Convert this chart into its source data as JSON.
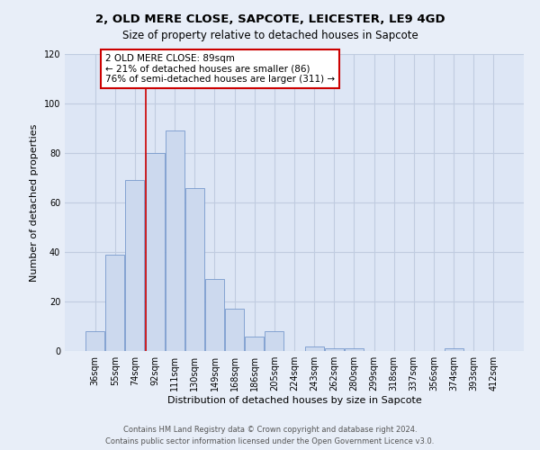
{
  "title": "2, OLD MERE CLOSE, SAPCOTE, LEICESTER, LE9 4GD",
  "subtitle": "Size of property relative to detached houses in Sapcote",
  "xlabel": "Distribution of detached houses by size in Sapcote",
  "ylabel": "Number of detached properties",
  "bar_labels": [
    "36sqm",
    "55sqm",
    "74sqm",
    "92sqm",
    "111sqm",
    "130sqm",
    "149sqm",
    "168sqm",
    "186sqm",
    "205sqm",
    "224sqm",
    "243sqm",
    "262sqm",
    "280sqm",
    "299sqm",
    "318sqm",
    "337sqm",
    "356sqm",
    "374sqm",
    "393sqm",
    "412sqm"
  ],
  "bar_values": [
    8,
    39,
    69,
    80,
    89,
    66,
    29,
    17,
    6,
    8,
    0,
    2,
    1,
    1,
    0,
    0,
    0,
    0,
    1,
    0,
    0
  ],
  "bar_color": "#ccd9ee",
  "bar_edge_color": "#7799cc",
  "vline_color": "#cc0000",
  "ylim": [
    0,
    120
  ],
  "yticks": [
    0,
    20,
    40,
    60,
    80,
    100,
    120
  ],
  "annotation_line1": "2 OLD MERE CLOSE: 89sqm",
  "annotation_line2": "← 21% of detached houses are smaller (86)",
  "annotation_line3": "76% of semi-detached houses are larger (311) →",
  "annotation_box_color": "#ffffff",
  "annotation_box_edge": "#cc0000",
  "footer_line1": "Contains HM Land Registry data © Crown copyright and database right 2024.",
  "footer_line2": "Contains public sector information licensed under the Open Government Licence v3.0.",
  "background_color": "#e8eef8",
  "plot_bg_color": "#dde6f5",
  "grid_color": "#c0cce0",
  "title_fontsize": 9.5,
  "subtitle_fontsize": 8.5,
  "axis_label_fontsize": 8,
  "tick_fontsize": 7,
  "annotation_fontsize": 7.5,
  "footer_fontsize": 6.0,
  "vline_bar_index": 3
}
